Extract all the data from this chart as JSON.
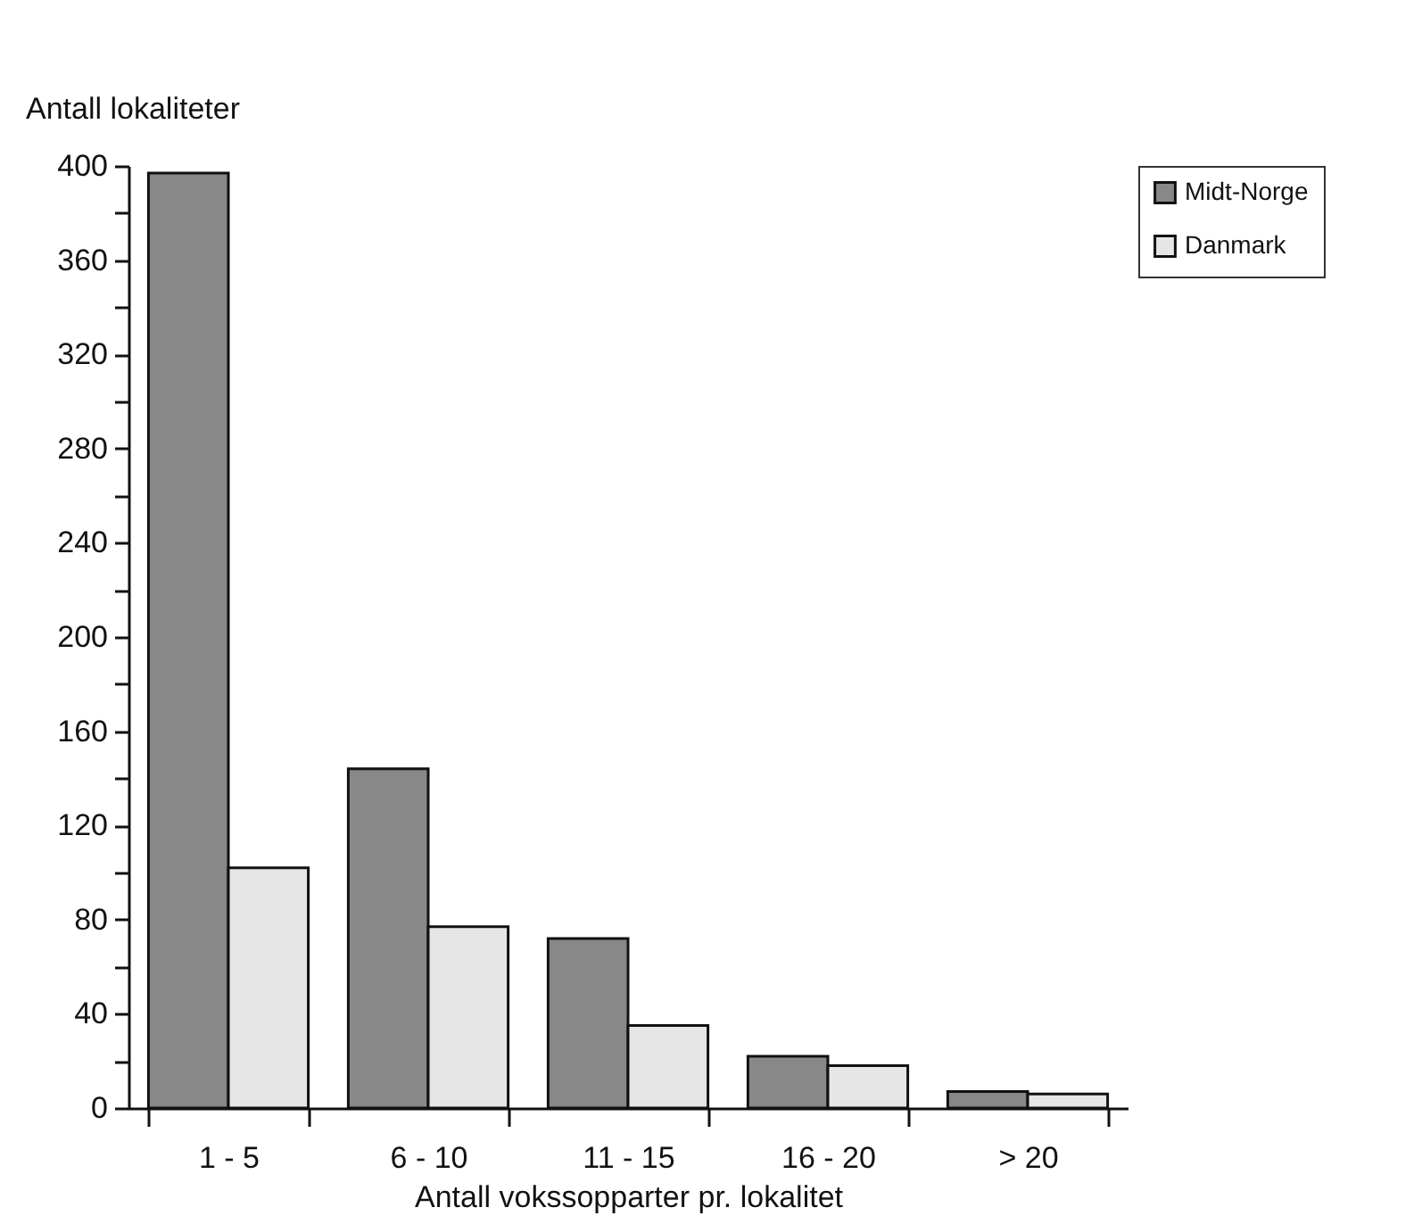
{
  "chart_data": {
    "type": "bar",
    "ylabel": "Antall lokaliteter",
    "xlabel": "Antall vokssopparter pr. lokalitet",
    "categories": [
      "1 - 5",
      "6 - 10",
      "11 - 15",
      "16 - 20",
      "> 20"
    ],
    "series": [
      {
        "name": "Midt-Norge",
        "color": "#888888",
        "values": [
          397,
          144,
          72,
          22,
          7
        ]
      },
      {
        "name": "Danmark",
        "color": "#e6e6e6",
        "values": [
          102,
          77,
          35,
          18,
          6
        ]
      }
    ],
    "ylim": [
      0,
      400
    ],
    "yticks": [
      0,
      {
        "value": 20,
        "label": null
      },
      40,
      {
        "value": 60,
        "label": null
      },
      80,
      {
        "value": 100,
        "label": null
      },
      120,
      {
        "value": 140,
        "label": null
      },
      160,
      {
        "value": 180,
        "label": null
      },
      200,
      {
        "value": 220,
        "label": null
      },
      240,
      {
        "value": 260,
        "label": null
      },
      280,
      {
        "value": 300,
        "label": null
      },
      320,
      {
        "value": 340,
        "label": null
      },
      360,
      {
        "value": 380,
        "label": null
      },
      400
    ],
    "grid": false,
    "legend": "right"
  }
}
